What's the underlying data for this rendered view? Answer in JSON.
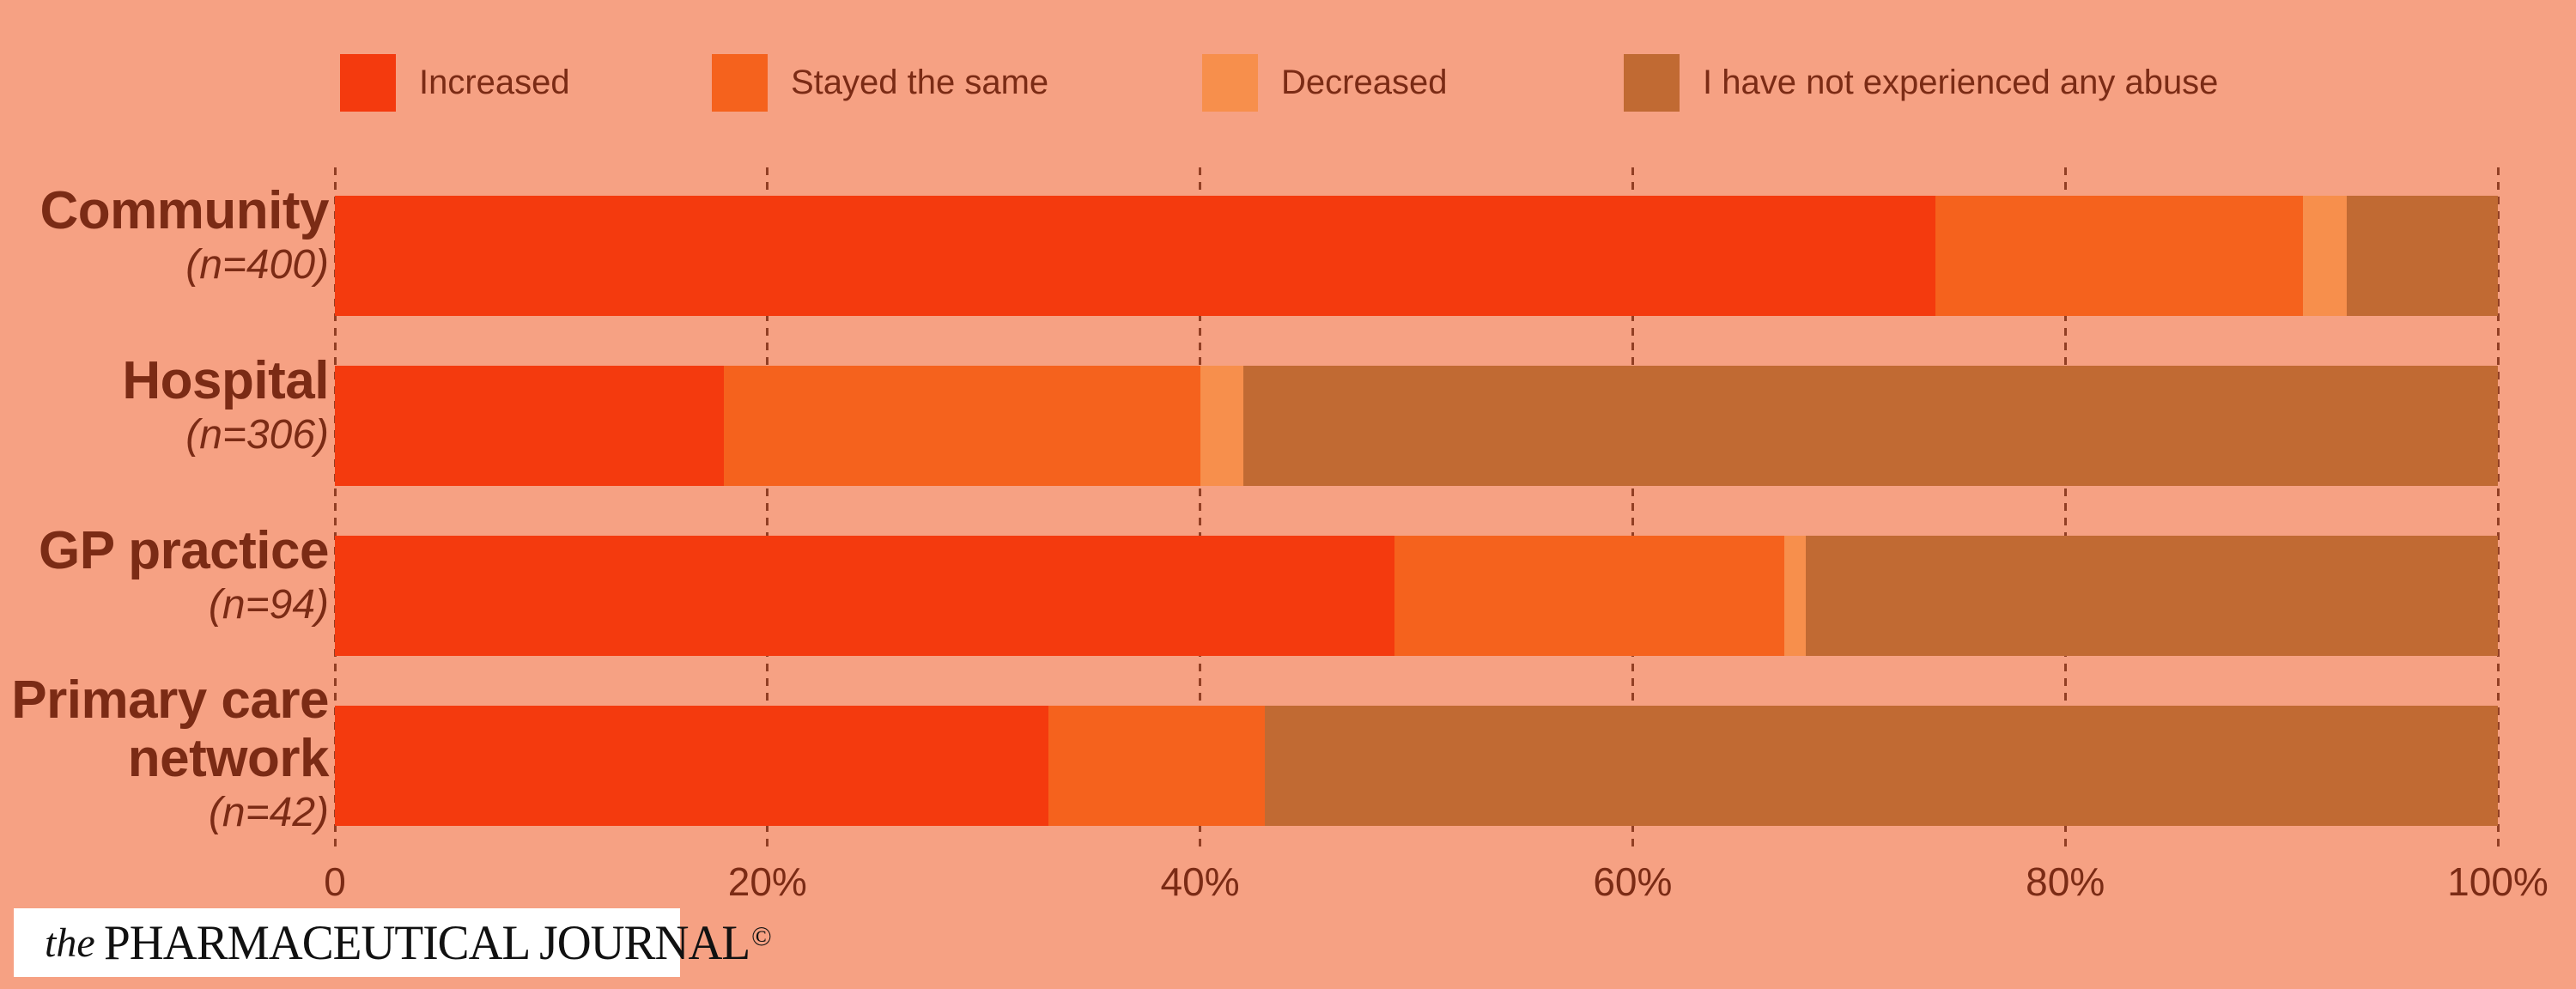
{
  "colors": {
    "background": "#F6A183",
    "text": "#7B2B15",
    "gridline": "#88351B",
    "logo_background": "#FFFFFF",
    "logo_text": "#111111",
    "increased": "#F43A0E",
    "stayed_the_same": "#F5621D",
    "decreased": "#F78F4C",
    "no_abuse": "#C16A33"
  },
  "legend": {
    "items": [
      {
        "label": "Increased",
        "color": "#F43A0E"
      },
      {
        "label": "Stayed the same",
        "color": "#F5621D"
      },
      {
        "label": "Decreased",
        "color": "#F78F4C"
      },
      {
        "label": "I have not experienced any abuse",
        "color": "#C16A33"
      }
    ]
  },
  "chart_data": {
    "type": "bar",
    "variant": "horizontal-stacked-100pct",
    "unit": "percent",
    "grid": "vertical-dashed",
    "legend_position": "top",
    "series": [
      {
        "name": "Increased",
        "color": "#F43A0E"
      },
      {
        "name": "Stayed the same",
        "color": "#F5621D"
      },
      {
        "name": "Decreased",
        "color": "#F78F4C"
      },
      {
        "name": "I have not experienced any abuse",
        "color": "#C16A33"
      }
    ],
    "categories": [
      {
        "lines": [
          "Community"
        ],
        "n_label": "(n=400)",
        "values": [
          74,
          17,
          2,
          7
        ]
      },
      {
        "lines": [
          "Hospital"
        ],
        "n_label": "(n=306)",
        "values": [
          18,
          22,
          2,
          58
        ]
      },
      {
        "lines": [
          "GP practice"
        ],
        "n_label": "(n=94)",
        "values": [
          49,
          18,
          1,
          32
        ]
      },
      {
        "lines": [
          "Primary care",
          "network"
        ],
        "n_label": "(n=42)",
        "values": [
          33,
          10,
          0,
          57
        ]
      }
    ],
    "x_ticks": [
      "0",
      "20%",
      "40%",
      "60%",
      "80%",
      "100%"
    ],
    "xlim": [
      0,
      100
    ]
  },
  "branding": {
    "prefix": "the",
    "name": "PHARMACEUTICAL JOURNAL",
    "mark": "©"
  }
}
